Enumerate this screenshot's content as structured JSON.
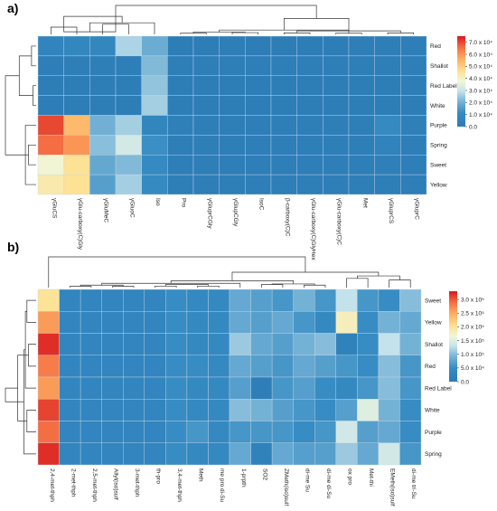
{
  "chart_data": [
    {
      "type": "heatmap",
      "panel_label": "a)",
      "rows": [
        "Red",
        "Shallot",
        "Red Label",
        "White",
        "Purple",
        "Spring",
        "Sweet",
        "Yellow"
      ],
      "columns": [
        "γGluCS",
        "γGlu-carboxy(C)Gly",
        "γGluMeC",
        "γGluoC",
        "Iso",
        "Pro",
        "γGluprCGly",
        "γGlupCGly",
        "IsoC",
        "β-carboxy(C)C",
        "γGlu-carboxy(C)GlyHex",
        "γGlu-carboxy(C)C",
        "Met",
        "γGluprCS",
        "γGluprC"
      ],
      "values": [
        [
          0.6,
          0.8,
          0.8,
          2.7,
          1.9,
          0.1,
          0.1,
          0.2,
          0.1,
          0.1,
          0.1,
          0.1,
          0.2,
          0.2,
          0.2
        ],
        [
          0.2,
          0.2,
          0.2,
          0.2,
          2.2,
          0.2,
          0.2,
          0.2,
          0.2,
          0.2,
          0.2,
          0.2,
          0.2,
          0.2,
          0.2
        ],
        [
          0.1,
          0.1,
          0.1,
          0.1,
          2.4,
          0.1,
          0.1,
          0.1,
          0.1,
          0.1,
          0.1,
          0.1,
          0.1,
          0.1,
          0.1
        ],
        [
          0.1,
          0.1,
          0.1,
          0.1,
          2.6,
          0.1,
          0.1,
          0.1,
          0.1,
          0.1,
          0.1,
          0.1,
          0.1,
          0.1,
          0.1
        ],
        [
          7.0,
          5.4,
          2.0,
          2.6,
          0.7,
          0.3,
          0.2,
          0.2,
          0.2,
          0.2,
          0.2,
          0.2,
          0.2,
          1.0,
          0.3
        ],
        [
          6.6,
          6.0,
          2.3,
          3.2,
          1.2,
          0.2,
          0.2,
          0.2,
          0.2,
          0.2,
          0.2,
          0.2,
          0.2,
          0.5,
          0.2
        ],
        [
          3.8,
          4.6,
          1.8,
          2.2,
          1.0,
          0.2,
          0.2,
          0.2,
          0.2,
          0.2,
          0.2,
          0.2,
          0.2,
          0.3,
          0.2
        ],
        [
          4.3,
          4.6,
          1.6,
          2.6,
          1.0,
          0.2,
          0.2,
          0.2,
          0.2,
          0.2,
          0.2,
          0.2,
          0.2,
          0.2,
          0.2
        ]
      ],
      "scale_min": 0,
      "scale_max": 7.5,
      "colorbar_ticks": [
        {
          "value": 7.0,
          "label": "7.0 x 10⁴"
        },
        {
          "value": 6.0,
          "label": "6.0 x 10⁴"
        },
        {
          "value": 5.0,
          "label": "5.0 x 10⁴"
        },
        {
          "value": 4.0,
          "label": "4.0 x 10⁴"
        },
        {
          "value": 3.0,
          "label": "3.0 x 10⁴"
        },
        {
          "value": 2.0,
          "label": "2.0 x 10⁴"
        },
        {
          "value": 1.0,
          "label": "1.0 x 10⁴"
        },
        {
          "value": 0.0,
          "label": "0.0"
        }
      ],
      "row_dendrogram": [
        [
          0,
          1,
          0.15
        ],
        [
          2,
          3,
          0.1
        ],
        [
          5,
          6,
          0.25
        ],
        [
          4,
          7,
          0.35
        ],
        [
          8,
          9,
          0.55
        ],
        [
          10,
          11,
          0.6
        ],
        [
          12,
          13,
          1.0
        ]
      ],
      "col_dendrogram": [
        [
          0,
          1,
          0.25
        ],
        [
          2,
          3,
          0.35
        ],
        [
          5,
          6,
          0.04
        ],
        [
          7,
          8,
          0.06
        ],
        [
          9,
          10,
          0.05
        ],
        [
          11,
          12,
          0.04
        ],
        [
          13,
          14,
          0.05
        ],
        [
          17,
          18,
          0.08
        ],
        [
          15,
          16,
          0.09
        ],
        [
          19,
          21,
          0.12
        ],
        [
          20,
          22,
          0.15
        ],
        [
          23,
          4,
          0.4
        ],
        [
          24,
          25,
          0.55
        ],
        [
          15,
          26,
          0.62
        ],
        [
          16,
          27,
          1.0
        ]
      ]
    },
    {
      "type": "heatmap",
      "panel_label": "b)",
      "rows": [
        "Sweet",
        "Yellow",
        "Shallot",
        "Red",
        "Red Label",
        "White",
        "Purple",
        "Spring"
      ],
      "columns": [
        "2,4-met-thph",
        "2-met-thph",
        "2,5-met-thph",
        "Allyl(iso)sulf",
        "3-met-thph",
        "th-pro",
        "3,4-met-thph",
        "Meth",
        "me pro di-Su",
        "1-prpth",
        "SO2",
        "ZMeth(iso)sulf",
        "di-me Su",
        "di-me di-Su",
        "ox pro",
        "Met-thi",
        "EMeth(iso)sulf",
        "di-me tri-Su"
      ],
      "values": [
        [
          2.0,
          0.3,
          0.3,
          0.3,
          0.3,
          0.3,
          0.5,
          0.4,
          0.4,
          0.8,
          0.7,
          0.6,
          0.9,
          0.6,
          1.3,
          0.6,
          0.5,
          1.0
        ],
        [
          2.6,
          0.3,
          0.3,
          0.3,
          0.3,
          0.3,
          0.5,
          0.4,
          0.4,
          0.8,
          0.7,
          0.8,
          0.6,
          0.4,
          1.8,
          0.5,
          0.9,
          0.8
        ],
        [
          3.2,
          0.3,
          0.3,
          0.3,
          0.3,
          0.3,
          0.5,
          0.4,
          0.4,
          1.1,
          0.8,
          0.7,
          0.9,
          1.0,
          0.2,
          0.5,
          1.3,
          0.9
        ],
        [
          2.8,
          0.3,
          0.3,
          0.3,
          0.3,
          0.3,
          0.5,
          0.5,
          0.4,
          0.8,
          0.7,
          0.6,
          0.8,
          0.7,
          0.6,
          0.5,
          1.0,
          0.6
        ],
        [
          2.6,
          0.3,
          0.3,
          0.3,
          0.3,
          0.3,
          0.5,
          0.4,
          0.4,
          0.7,
          0.1,
          0.6,
          0.7,
          0.5,
          0.4,
          0.6,
          1.0,
          0.6
        ],
        [
          3.1,
          0.3,
          0.3,
          0.3,
          0.3,
          0.3,
          0.5,
          0.4,
          0.4,
          1.0,
          0.9,
          0.7,
          0.6,
          0.5,
          0.7,
          1.5,
          0.9,
          0.5
        ],
        [
          2.9,
          0.3,
          0.3,
          0.3,
          0.3,
          0.3,
          0.5,
          0.6,
          0.4,
          0.6,
          0.6,
          0.6,
          0.5,
          0.6,
          1.4,
          0.7,
          0.8,
          0.5
        ],
        [
          3.2,
          0.3,
          0.3,
          0.3,
          0.3,
          0.3,
          0.5,
          0.4,
          0.4,
          0.8,
          0.2,
          0.8,
          0.7,
          0.7,
          1.1,
          0.8,
          1.4,
          0.6
        ]
      ],
      "scale_min": 0,
      "scale_max": 3.3,
      "colorbar_ticks": [
        {
          "value": 3.0,
          "label": "3.0 x 10⁵"
        },
        {
          "value": 2.5,
          "label": "2.5 x 10⁵"
        },
        {
          "value": 2.0,
          "label": "2.0 x 10⁵"
        },
        {
          "value": 1.5,
          "label": "1.5 x 10⁵"
        },
        {
          "value": 1.0,
          "label": "1.0 x 10⁵"
        },
        {
          "value": 0.5,
          "label": "5.0 x 10⁴"
        },
        {
          "value": 0.0,
          "label": "0.0"
        }
      ],
      "row_dendrogram": [
        [
          0,
          1,
          0.3
        ],
        [
          2,
          3,
          0.25
        ],
        [
          8,
          4,
          0.35
        ],
        [
          5,
          6,
          0.3
        ],
        [
          10,
          7,
          0.4
        ],
        [
          9,
          11,
          0.6
        ],
        [
          12,
          13,
          1.0
        ]
      ],
      "col_dendrogram": [
        [
          1,
          2,
          0.04
        ],
        [
          3,
          4,
          0.04
        ],
        [
          5,
          6,
          0.05
        ],
        [
          7,
          8,
          0.05
        ],
        [
          18,
          19,
          0.08
        ],
        [
          20,
          21,
          0.1
        ],
        [
          22,
          9,
          0.14
        ],
        [
          10,
          11,
          0.1
        ],
        [
          12,
          13,
          0.08
        ],
        [
          25,
          26,
          0.12
        ],
        [
          24,
          27,
          0.22
        ],
        [
          14,
          15,
          0.3
        ],
        [
          16,
          17,
          0.25
        ],
        [
          29,
          30,
          0.38
        ],
        [
          28,
          31,
          0.5
        ],
        [
          0,
          32,
          1.0
        ]
      ]
    }
  ]
}
